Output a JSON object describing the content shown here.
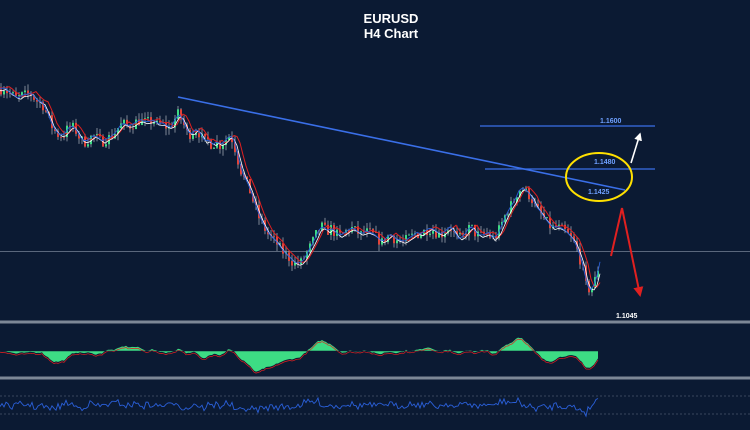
{
  "chart_data": {
    "type": "candlestick",
    "title": "EURUSD",
    "subtitle": "H4 Chart",
    "symbol": "EURUSD",
    "timeframe": "H4",
    "price_range": [
      1.095,
      1.185
    ],
    "close_path": [
      [
        0,
        1.169
      ],
      [
        4,
        1.1695
      ],
      [
        8,
        1.168
      ],
      [
        13,
        1.167
      ],
      [
        17,
        1.166
      ],
      [
        21,
        1.167
      ],
      [
        26,
        1.1672
      ],
      [
        30,
        1.1678
      ],
      [
        34,
        1.1662
      ],
      [
        38,
        1.165
      ],
      [
        42,
        1.1645
      ],
      [
        47,
        1.161
      ],
      [
        51,
        1.1575
      ],
      [
        55,
        1.1555
      ],
      [
        59,
        1.154
      ],
      [
        64,
        1.1545
      ],
      [
        68,
        1.1565
      ],
      [
        72,
        1.157
      ],
      [
        76,
        1.1555
      ],
      [
        81,
        1.1525
      ],
      [
        85,
        1.152
      ],
      [
        89,
        1.153
      ],
      [
        93,
        1.154
      ],
      [
        98,
        1.153
      ],
      [
        102,
        1.152
      ],
      [
        106,
        1.153
      ],
      [
        110,
        1.1535
      ],
      [
        115,
        1.155
      ],
      [
        119,
        1.157
      ],
      [
        123,
        1.158
      ],
      [
        127,
        1.157
      ],
      [
        132,
        1.1575
      ],
      [
        136,
        1.1585
      ],
      [
        140,
        1.159
      ],
      [
        144,
        1.1583
      ],
      [
        149,
        1.1585
      ],
      [
        153,
        1.159
      ],
      [
        157,
        1.1575
      ],
      [
        161,
        1.158
      ],
      [
        166,
        1.157
      ],
      [
        170,
        1.1565
      ],
      [
        174,
        1.159
      ],
      [
        178,
        1.161
      ],
      [
        182,
        1.159
      ],
      [
        187,
        1.155
      ],
      [
        191,
        1.1545
      ],
      [
        195,
        1.156
      ],
      [
        199,
        1.155
      ],
      [
        204,
        1.152
      ],
      [
        208,
        1.1525
      ],
      [
        212,
        1.151
      ],
      [
        216,
        1.152
      ],
      [
        220,
        1.151
      ],
      [
        225,
        1.1525
      ],
      [
        229,
        1.154
      ],
      [
        233,
        1.1525
      ],
      [
        238,
        1.146
      ],
      [
        242,
        1.1415
      ],
      [
        246,
        1.139
      ],
      [
        250,
        1.136
      ],
      [
        255,
        1.131
      ],
      [
        259,
        1.1275
      ],
      [
        263,
        1.125
      ],
      [
        267,
        1.1225
      ],
      [
        271,
        1.121
      ],
      [
        276,
        1.1195
      ],
      [
        280,
        1.1175
      ],
      [
        284,
        1.116
      ],
      [
        289,
        1.1145
      ],
      [
        293,
        1.113
      ],
      [
        297,
        1.1125
      ],
      [
        301,
        1.113
      ],
      [
        305,
        1.115
      ],
      [
        310,
        1.118
      ],
      [
        314,
        1.1205
      ],
      [
        318,
        1.1235
      ],
      [
        322,
        1.1245
      ],
      [
        327,
        1.123
      ],
      [
        331,
        1.124
      ],
      [
        335,
        1.1225
      ],
      [
        339,
        1.1215
      ],
      [
        344,
        1.1225
      ],
      [
        348,
        1.1235
      ],
      [
        352,
        1.124
      ],
      [
        356,
        1.123
      ],
      [
        361,
        1.122
      ],
      [
        365,
        1.123
      ],
      [
        369,
        1.1225
      ],
      [
        373,
        1.122
      ],
      [
        378,
        1.1205
      ],
      [
        382,
        1.1195
      ],
      [
        386,
        1.121
      ],
      [
        390,
        1.122
      ],
      [
        395,
        1.1205
      ],
      [
        399,
        1.12
      ],
      [
        403,
        1.1195
      ],
      [
        407,
        1.1205
      ],
      [
        412,
        1.1215
      ],
      [
        416,
        1.1225
      ],
      [
        420,
        1.122
      ],
      [
        424,
        1.123
      ],
      [
        429,
        1.124
      ],
      [
        433,
        1.1235
      ],
      [
        437,
        1.1225
      ],
      [
        441,
        1.122
      ],
      [
        446,
        1.1235
      ],
      [
        450,
        1.1245
      ],
      [
        454,
        1.1225
      ],
      [
        458,
        1.1205
      ],
      [
        463,
        1.1215
      ],
      [
        467,
        1.1235
      ],
      [
        471,
        1.1245
      ],
      [
        475,
        1.1225
      ],
      [
        480,
        1.1215
      ],
      [
        484,
        1.122
      ],
      [
        488,
        1.1225
      ],
      [
        492,
        1.1205
      ],
      [
        497,
        1.122
      ],
      [
        501,
        1.125
      ],
      [
        505,
        1.128
      ],
      [
        509,
        1.1305
      ],
      [
        514,
        1.133
      ],
      [
        518,
        1.136
      ],
      [
        522,
        1.137
      ],
      [
        526,
        1.136
      ],
      [
        531,
        1.134
      ],
      [
        535,
        1.131
      ],
      [
        539,
        1.1295
      ],
      [
        543,
        1.1275
      ],
      [
        548,
        1.1255
      ],
      [
        552,
        1.124
      ],
      [
        556,
        1.1245
      ],
      [
        560,
        1.124
      ],
      [
        565,
        1.123
      ],
      [
        569,
        1.1215
      ],
      [
        573,
        1.12
      ],
      [
        577,
        1.117
      ],
      [
        582,
        1.112
      ],
      [
        586,
        1.1055
      ],
      [
        590,
        1.104
      ],
      [
        594,
        1.106
      ],
      [
        598,
        1.111
      ],
      [
        600,
        1.115
      ]
    ],
    "trend_line": [
      [
        0,
        1.163
      ],
      [
        600,
        1.138
      ]
    ],
    "price_line": 1.1165,
    "levels": [
      {
        "label": "1.1600",
        "value": 1.16,
        "x_from": 480,
        "x_to": 655,
        "color": "#3a6fe8"
      },
      {
        "label": "1.1480",
        "value": 1.148,
        "x_from": 485,
        "x_to": 655,
        "color": "#3a6fe8"
      },
      {
        "label": "1.1425",
        "value": 1.1425
      }
    ],
    "target_label": "1.1045",
    "arrows": [
      {
        "from": [
          625,
          1.138
        ],
        "to": [
          637,
          1.105
        ],
        "color": "#e02020"
      },
      {
        "from": [
          625,
          1.138
        ],
        "to": [
          612,
          1.119
        ],
        "color": "#e02020"
      },
      {
        "from": [
          632,
          1.1505
        ],
        "to": [
          642,
          1.157
        ],
        "color": "#ffffff"
      }
    ],
    "highlight": {
      "center": [
        598,
        1.145
      ],
      "rx": 33,
      "ry_price": 0.0055,
      "color": "#ffe000"
    },
    "grid": false,
    "oscillator": {
      "type": "histogram",
      "color": "#3ddc84"
    },
    "lower_indicator": {
      "type": "line",
      "color": "#2a5fd8"
    }
  }
}
